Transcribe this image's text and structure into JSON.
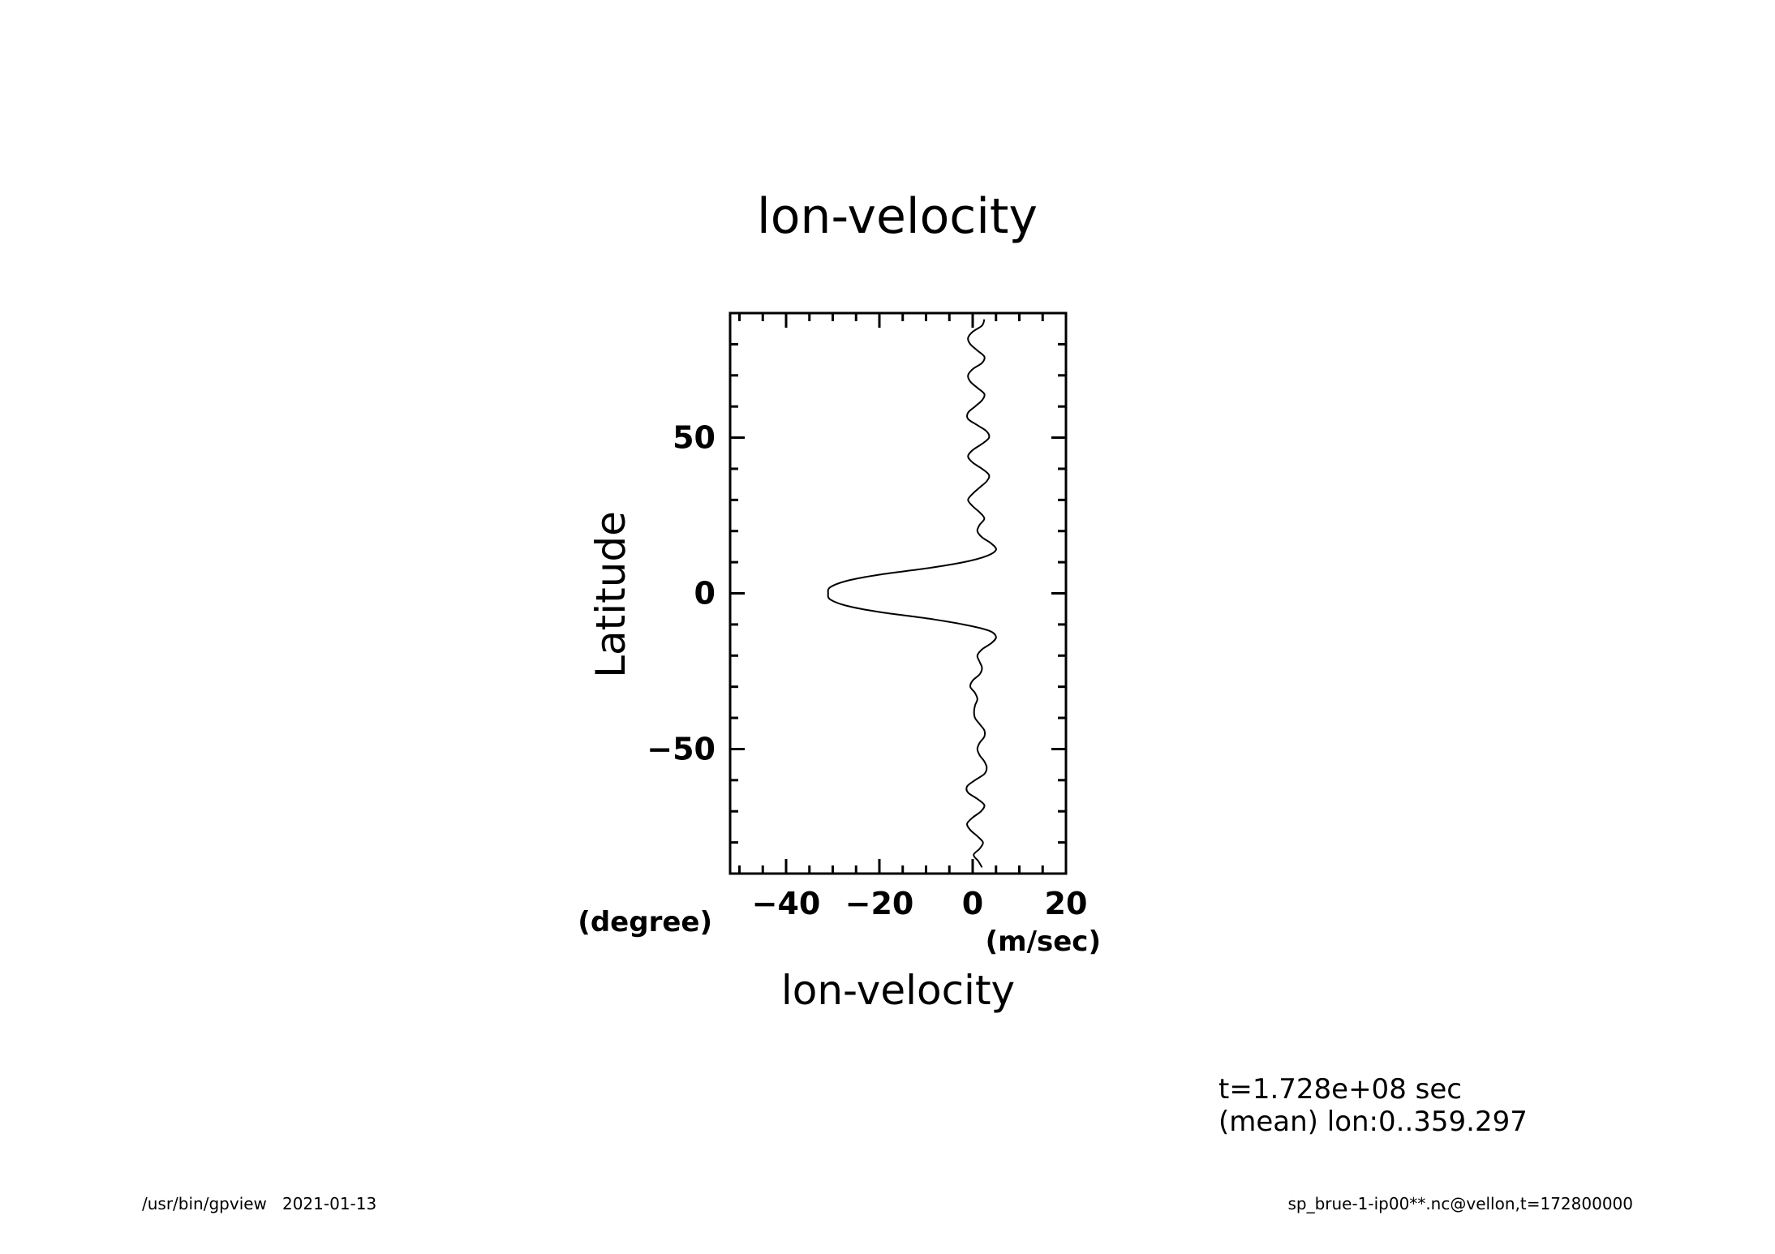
{
  "chart_data": {
    "type": "line",
    "title": "lon-velocity",
    "xlabel": "lon-velocity",
    "xunit": "(m/sec)",
    "ylabel": "Latitude",
    "yunit": "(degree)",
    "xlim": [
      -52,
      20
    ],
    "ylim": [
      -90,
      90
    ],
    "x_ticks": [
      -40,
      -20,
      0,
      20
    ],
    "x_tick_labels": [
      "−40",
      "−20",
      "0",
      "20"
    ],
    "y_ticks": [
      -50,
      0,
      50
    ],
    "y_tick_labels": [
      "−50",
      "0",
      "50"
    ],
    "grid": false,
    "series": [
      {
        "points": [
          [
            2.0,
            -88
          ],
          [
            1.2,
            -86
          ],
          [
            0.2,
            -84
          ],
          [
            1.5,
            -82
          ],
          [
            2.2,
            -80
          ],
          [
            1.0,
            -78
          ],
          [
            -0.5,
            -76
          ],
          [
            -1.2,
            -74
          ],
          [
            0.0,
            -72
          ],
          [
            1.8,
            -70
          ],
          [
            2.5,
            -68
          ],
          [
            1.0,
            -66
          ],
          [
            -1.0,
            -64
          ],
          [
            -1.2,
            -62
          ],
          [
            0.5,
            -60
          ],
          [
            2.5,
            -58
          ],
          [
            3.0,
            -56
          ],
          [
            2.5,
            -54
          ],
          [
            1.5,
            -52
          ],
          [
            1.0,
            -50
          ],
          [
            1.5,
            -48
          ],
          [
            2.5,
            -46
          ],
          [
            2.5,
            -44
          ],
          [
            1.5,
            -42
          ],
          [
            0.5,
            -40
          ],
          [
            0.3,
            -38
          ],
          [
            0.5,
            -36
          ],
          [
            1.0,
            -34
          ],
          [
            0.5,
            -32
          ],
          [
            -0.5,
            -30
          ],
          [
            0.0,
            -28
          ],
          [
            1.5,
            -26
          ],
          [
            2.0,
            -24
          ],
          [
            1.5,
            -22
          ],
          [
            1.0,
            -20
          ],
          [
            2.0,
            -18
          ],
          [
            4.0,
            -16
          ],
          [
            5.0,
            -14
          ],
          [
            3.5,
            -12
          ],
          [
            -2.0,
            -10
          ],
          [
            -10.0,
            -8
          ],
          [
            -20.0,
            -6
          ],
          [
            -27.0,
            -4
          ],
          [
            -30.5,
            -2
          ],
          [
            -31.0,
            0
          ],
          [
            -30.5,
            2
          ],
          [
            -27.0,
            4
          ],
          [
            -20.0,
            6
          ],
          [
            -10.0,
            8
          ],
          [
            -2.0,
            10
          ],
          [
            3.0,
            12
          ],
          [
            5.0,
            14
          ],
          [
            4.0,
            16
          ],
          [
            2.0,
            18
          ],
          [
            1.0,
            20
          ],
          [
            1.5,
            22
          ],
          [
            2.5,
            24
          ],
          [
            1.5,
            26
          ],
          [
            0.0,
            28
          ],
          [
            -1.0,
            30
          ],
          [
            0.0,
            32
          ],
          [
            1.5,
            34
          ],
          [
            3.0,
            36
          ],
          [
            3.5,
            38
          ],
          [
            2.0,
            40
          ],
          [
            0.0,
            42
          ],
          [
            -1.0,
            44
          ],
          [
            0.0,
            46
          ],
          [
            2.0,
            48
          ],
          [
            3.5,
            50
          ],
          [
            3.0,
            52
          ],
          [
            1.0,
            54
          ],
          [
            -1.0,
            56
          ],
          [
            -1.0,
            58
          ],
          [
            0.5,
            60
          ],
          [
            2.0,
            62
          ],
          [
            2.5,
            64
          ],
          [
            1.0,
            66
          ],
          [
            -0.5,
            68
          ],
          [
            -1.0,
            70
          ],
          [
            0.0,
            72
          ],
          [
            2.0,
            74
          ],
          [
            2.5,
            76
          ],
          [
            1.0,
            78
          ],
          [
            -0.5,
            80
          ],
          [
            -1.0,
            82
          ],
          [
            0.0,
            84
          ],
          [
            2.0,
            86
          ],
          [
            2.5,
            88
          ]
        ]
      }
    ]
  },
  "annotations": {
    "time": "t=1.728e+08 sec",
    "mean": "(mean) lon:0..359.297"
  },
  "footer": {
    "left": "/usr/bin/gpview   2021-01-13",
    "right": "sp_brue-1-ip00**.nc@vellon,t=172800000"
  }
}
